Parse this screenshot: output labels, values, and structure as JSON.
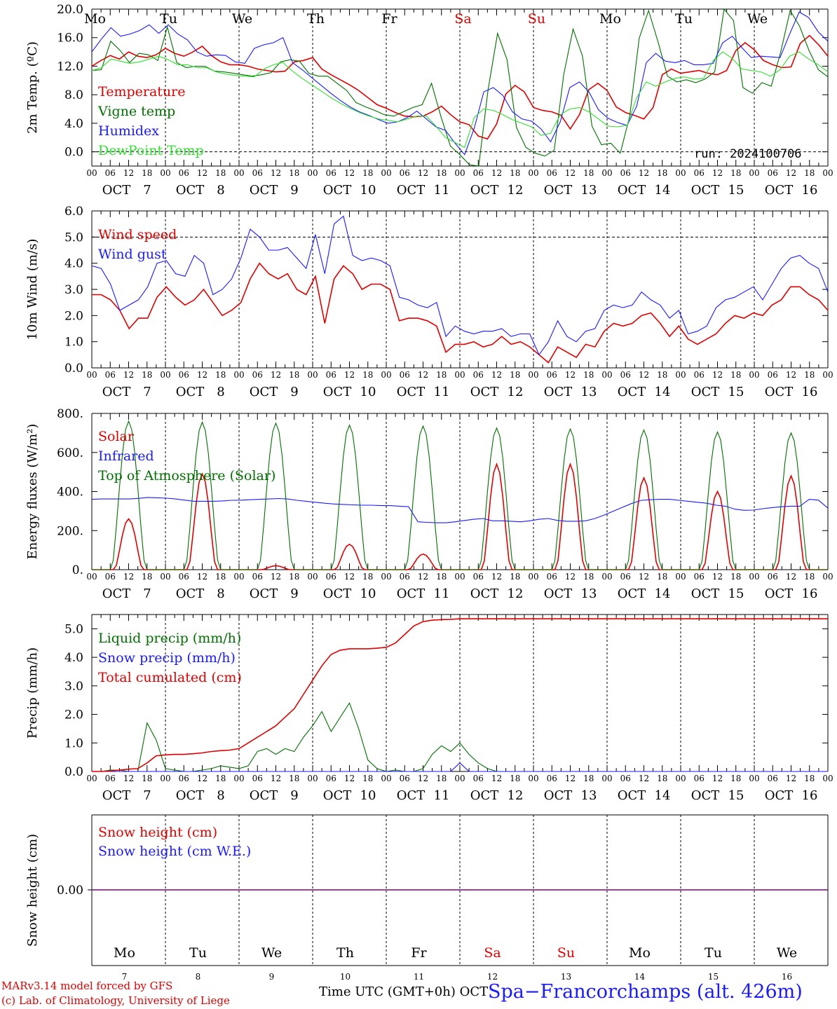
{
  "days": [
    {
      "abbr": "Mo",
      "date": "7",
      "weekend": false
    },
    {
      "abbr": "Tu",
      "date": "8",
      "weekend": false
    },
    {
      "abbr": "We",
      "date": "9",
      "weekend": false
    },
    {
      "abbr": "Th",
      "date": "10",
      "weekend": false
    },
    {
      "abbr": "Fr",
      "date": "11",
      "weekend": false
    },
    {
      "abbr": "Sa",
      "date": "12",
      "weekend": true
    },
    {
      "abbr": "Su",
      "date": "13",
      "weekend": true
    },
    {
      "abbr": "Mo",
      "date": "14",
      "weekend": false
    },
    {
      "abbr": "Tu",
      "date": "15",
      "weekend": false
    },
    {
      "abbr": "We",
      "date": "16",
      "weekend": false
    }
  ],
  "month": "OCT",
  "hour_ticks": [
    "00",
    "06",
    "12",
    "18"
  ],
  "last_hour_tick": "00",
  "run_label": "run: 2024100706",
  "footer": {
    "credit_line1": "MARv3.14 model forced by GFS",
    "credit_line2": "(c) Lab. of Climatology, University of Liege",
    "x_title": "Time UTC (GMT+0h) OCT",
    "station": "Spa−Francorchamps (alt. 426m)"
  },
  "colors": {
    "red": "#e00000",
    "green": "#007000",
    "blue": "#1a1aff",
    "lightgreen": "#30e030",
    "purple": "#800080"
  },
  "chart_data": [
    {
      "type": "line",
      "ylabel": "2m Temp. (ºC)",
      "ylim": [
        -2.0,
        20.0
      ],
      "yticks": [
        "0.0",
        "4.0",
        "8.0",
        "12.0",
        "16.0",
        "20.0"
      ],
      "dashed_zero": true,
      "series": [
        {
          "name": "Temperature",
          "color": "red",
          "values": [
            12,
            12.8,
            13.5,
            13,
            14,
            13.4,
            13.2,
            13.6,
            14.5,
            13.8,
            13.4,
            14,
            14.8,
            13.5,
            12.6,
            12.2,
            12.2,
            12,
            11.6,
            11.4,
            11.2,
            11.3,
            12.6,
            12.8,
            13.2,
            11.6,
            10.8,
            10.1,
            9.4,
            8.6,
            7.6,
            6.6,
            6.1,
            5.5,
            5,
            4.9,
            5,
            5.6,
            6.4,
            5.2,
            4.2,
            3.8,
            2.2,
            1.8,
            3.9,
            8.1,
            9.3,
            8.4,
            6.2,
            5.8,
            5.6,
            5.1,
            3.2,
            5.2,
            8.7,
            9.6,
            8.6,
            6.3,
            5.5,
            5.1,
            4.6,
            6.2,
            10.8,
            11.6,
            11,
            11.2,
            11.4,
            11,
            10.8,
            11.4,
            14.2,
            15.3,
            14.3,
            12.8,
            12.2,
            11.8,
            11.9,
            15.2,
            16.3,
            15,
            13.4
          ]
        },
        {
          "name": "Vigne temp",
          "color": "green",
          "values": [
            11.4,
            11.5,
            15.5,
            14.2,
            12.5,
            13.8,
            13.6,
            12.8,
            17.5,
            12.5,
            11.8,
            12,
            12,
            11.3,
            11.2,
            11,
            10.8,
            10.6,
            10.8,
            11.1,
            12.6,
            12.9,
            12.7,
            11,
            10.6,
            10.6,
            9.6,
            8.6,
            6.9,
            6.3,
            5.8,
            5.2,
            5,
            5.6,
            6.2,
            6.6,
            9.6,
            4.9,
            0.8,
            -0.4,
            -1.8,
            -3,
            8.8,
            16.6,
            12.9,
            3.4,
            0.6,
            -0.2,
            -0.6,
            0.2,
            10.8,
            17.2,
            13.4,
            3.6,
            1,
            1.2,
            -0.2,
            5,
            15.9,
            19.8,
            15.4,
            10.6,
            9.8,
            10.1,
            9.7,
            10.2,
            11.2,
            20.4,
            18.4,
            9,
            8.2,
            9.7,
            9.2,
            14,
            19.8,
            17.6,
            14.2,
            11.5,
            10.5
          ]
        },
        {
          "name": "Humidex",
          "color": "blue",
          "values": [
            14,
            15.8,
            17.4,
            16.2,
            16.5,
            17,
            17.8,
            16.6,
            17.8,
            16.5,
            15.7,
            14,
            13.4,
            13.6,
            13.5,
            12.6,
            12.4,
            14.5,
            15,
            15.3,
            16,
            12.5,
            11.5,
            10.4,
            9.3,
            8.2,
            7.2,
            6.3,
            5.6,
            5.1,
            4.5,
            4,
            4.2,
            4.8,
            5.7,
            4.6,
            3.5,
            3,
            1.2,
            -0.4,
            3.3,
            8.4,
            9,
            7.9,
            5.6,
            4.6,
            4.3,
            3.2,
            1.4,
            4.2,
            9,
            9.8,
            8.4,
            5.9,
            4.7,
            4.1,
            3.7,
            6.4,
            12.5,
            13.8,
            12.7,
            12.5,
            12.8,
            12.2,
            12.2,
            12.4,
            15.3,
            16.2,
            14.6,
            13.2,
            13.4,
            13.3,
            13.2,
            16.5,
            19.6,
            18.8,
            16.8,
            15.5
          ]
        },
        {
          "name": "DewPoint Temp",
          "color": "lightgreen",
          "values": [
            11.4,
            11.8,
            13,
            12.7,
            12.4,
            12.6,
            13,
            13.4,
            12.9,
            12.2,
            12.2,
            11.8,
            11.8,
            11.2,
            10.9,
            10.7,
            10.6,
            10.5,
            11.6,
            12.2,
            12.5,
            11.3,
            10.3,
            9.4,
            8.5,
            7.6,
            6.8,
            6.1,
            5.5,
            5,
            4.6,
            4.4,
            4.2,
            4.6,
            5,
            5,
            3.6,
            2,
            1.3,
            0.6,
            4.8,
            6,
            5.8,
            5.2,
            4.5,
            4,
            3.5,
            2.3,
            2.6,
            5.2,
            6,
            6.2,
            5.6,
            4.6,
            3.6,
            3.5,
            3.7,
            7.6,
            9.8,
            9.2,
            9.8,
            10.3,
            10.5,
            10.2,
            10.3,
            12.8,
            14,
            13.1,
            11.6,
            11.4,
            11.2,
            10.6,
            11.5,
            13.4,
            14,
            13,
            12.2,
            11.2
          ]
        }
      ],
      "x_range_hours": [
        0,
        240
      ]
    },
    {
      "type": "line",
      "ylabel": "10m Wind (m/s)",
      "ylim": [
        0.0,
        6.0
      ],
      "yticks": [
        "0.0",
        "1.0",
        "2.0",
        "3.0",
        "4.0",
        "5.0",
        "6.0"
      ],
      "dashed_line_at": 5.0,
      "series": [
        {
          "name": "Wind speed",
          "color": "red",
          "values": [
            2.8,
            2.8,
            2.6,
            2.2,
            1.5,
            1.9,
            1.9,
            2.7,
            3.1,
            2.7,
            2.4,
            2.6,
            3,
            2.5,
            2,
            2.2,
            2.5,
            3.4,
            4,
            3.6,
            3.4,
            3.6,
            3,
            2.8,
            3.5,
            1.7,
            3.4,
            3.9,
            3.6,
            3,
            3.2,
            3.2,
            3,
            1.8,
            1.9,
            1.9,
            1.8,
            1.6,
            0.6,
            0.9,
            0.9,
            1,
            0.8,
            0.9,
            1.2,
            0.9,
            1,
            0.8,
            0.5,
            0.2,
            0.8,
            0.6,
            0.4,
            0.9,
            0.8,
            1.4,
            1.7,
            1.6,
            1.7,
            2,
            2.1,
            1.7,
            1.2,
            1.6,
            1.1,
            0.9,
            1.1,
            1.3,
            1.7,
            2,
            1.9,
            2.1,
            2,
            2.4,
            2.6,
            3.1,
            3.1,
            2.8,
            2.6,
            2.2
          ]
        },
        {
          "name": "Wind gust",
          "color": "blue",
          "values": [
            3.9,
            3.8,
            3.2,
            2.2,
            2.4,
            2.6,
            3.1,
            4,
            4.1,
            3.6,
            3.5,
            4.3,
            4,
            2.8,
            3,
            3.4,
            4.2,
            5.3,
            5,
            4.5,
            4.5,
            4.6,
            4.2,
            3.8,
            5.1,
            3.6,
            5.5,
            5.8,
            4.3,
            4.1,
            4.2,
            4.1,
            3.9,
            2.7,
            2.6,
            2.4,
            2.3,
            2.5,
            1.2,
            1.6,
            1.4,
            1.3,
            1.4,
            1.4,
            1.5,
            1.2,
            1.3,
            1.3,
            0.5,
            1,
            1.8,
            1.2,
            1,
            1.4,
            1.5,
            2.2,
            2.4,
            2.3,
            2.4,
            2.9,
            2.6,
            2.4,
            1.9,
            2.2,
            1.3,
            1.4,
            1.6,
            2.3,
            2.6,
            2.7,
            2.9,
            3.1,
            2.6,
            3.2,
            3.8,
            4.2,
            4.3,
            4,
            3.8,
            2.9
          ]
        }
      ],
      "x_range_hours": [
        0,
        240
      ]
    },
    {
      "type": "line",
      "ylabel": "Energy fluxes (W/m²)",
      "ylim": [
        0,
        800
      ],
      "yticks": [
        "0.",
        "200.",
        "400.",
        "600.",
        "800."
      ],
      "series": [
        {
          "name": "Solar",
          "color": "red",
          "daily_peaks": [
            260,
            490,
            20,
            130,
            80,
            540,
            540,
            470,
            400,
            480
          ],
          "peak_hour": 12,
          "half_width_hours": 4.5
        },
        {
          "name": "Infrared",
          "color": "blue",
          "values": [
            360,
            362,
            362,
            362,
            362,
            365,
            370,
            368,
            366,
            362,
            356,
            350,
            350,
            350,
            352,
            355,
            356,
            358,
            360,
            362,
            364,
            362,
            355,
            350,
            345,
            340,
            336,
            334,
            332,
            330,
            330,
            328,
            328,
            325,
            322,
            245,
            242,
            240,
            240,
            245,
            252,
            258,
            262,
            250,
            250,
            248,
            245,
            250,
            258,
            262,
            252,
            248,
            248,
            250,
            262,
            280,
            300,
            320,
            340,
            355,
            358,
            360,
            360,
            355,
            350,
            345,
            340,
            330,
            325,
            310,
            304,
            305,
            312,
            318,
            322,
            325,
            325,
            360,
            356,
            315
          ]
        },
        {
          "name": "Top of Atmosphere (Solar)",
          "color": "green",
          "daily_peaks": [
            760,
            755,
            750,
            740,
            735,
            725,
            720,
            715,
            705,
            700
          ],
          "peak_hour": 12,
          "half_width_hours": 5.5
        }
      ],
      "x_range_hours": [
        0,
        240
      ]
    },
    {
      "type": "line",
      "ylabel": "Precip (mm/h)",
      "ylim": [
        0,
        5.5
      ],
      "yticks": [
        "0.0",
        "1.0",
        "2.0",
        "3.0",
        "4.0",
        "5.0"
      ],
      "series": [
        {
          "name": "Liquid precip (mm/h)",
          "color": "green",
          "values": [
            0,
            0,
            0.05,
            0.05,
            0,
            0,
            1.7,
            1.1,
            0.1,
            0.05,
            0,
            0,
            0.05,
            0.1,
            0.2,
            0.15,
            0.1,
            0.2,
            0.7,
            0.8,
            0.6,
            0.8,
            0.7,
            1.2,
            1.6,
            2.1,
            1.4,
            1.9,
            2.4,
            1.5,
            0.4,
            0.1,
            0,
            0.05,
            0,
            0,
            0.1,
            0.6,
            0.9,
            0.7,
            1,
            0.6,
            0.3,
            0.1,
            0,
            0,
            0,
            0,
            0,
            0,
            0,
            0,
            0,
            0,
            0,
            0,
            0,
            0,
            0,
            0,
            0,
            0,
            0,
            0,
            0,
            0,
            0,
            0,
            0,
            0,
            0,
            0,
            0,
            0,
            0,
            0,
            0,
            0,
            0,
            0,
            0
          ]
        },
        {
          "name": "Snow precip (mm/h)",
          "color": "blue",
          "values": [
            0,
            0,
            0,
            0,
            0,
            0,
            0,
            0,
            0,
            0,
            0,
            0,
            0,
            0,
            0,
            0,
            0,
            0,
            0,
            0,
            0,
            0,
            0,
            0,
            0,
            0,
            0,
            0,
            0,
            0,
            0,
            0,
            0,
            0,
            0,
            0,
            0,
            0,
            0,
            0,
            0.3,
            0,
            0,
            0,
            0,
            0,
            0,
            0,
            0,
            0,
            0,
            0,
            0,
            0,
            0,
            0,
            0,
            0,
            0,
            0,
            0,
            0,
            0,
            0,
            0,
            0,
            0,
            0,
            0,
            0,
            0,
            0,
            0,
            0,
            0,
            0,
            0,
            0,
            0,
            0,
            0
          ]
        },
        {
          "name": "Total cumulated (cm)",
          "color": "red",
          "values": [
            0,
            0,
            0.02,
            0.05,
            0.08,
            0.1,
            0.3,
            0.55,
            0.58,
            0.6,
            0.6,
            0.62,
            0.65,
            0.7,
            0.73,
            0.75,
            0.8,
            1.0,
            1.2,
            1.4,
            1.6,
            1.9,
            2.2,
            2.7,
            3.2,
            3.7,
            4.1,
            4.25,
            4.3,
            4.3,
            4.3,
            4.32,
            4.35,
            4.5,
            4.8,
            5.1,
            5.25,
            5.3,
            5.32,
            5.33,
            5.35,
            5.35,
            5.35,
            5.35,
            5.35,
            5.35,
            5.35,
            5.35,
            5.35,
            5.35,
            5.35,
            5.35,
            5.35,
            5.35,
            5.35,
            5.35,
            5.35,
            5.35,
            5.35,
            5.35,
            5.35,
            5.35,
            5.35,
            5.35,
            5.35,
            5.35,
            5.35,
            5.35,
            5.35,
            5.35,
            5.35,
            5.35,
            5.35,
            5.35,
            5.35,
            5.35,
            5.35,
            5.35,
            5.35,
            5.35,
            5.35
          ]
        }
      ],
      "x_range_hours": [
        0,
        240
      ]
    },
    {
      "type": "line",
      "ylabel": "Snow height (cm)",
      "yticks": [
        "0.00"
      ],
      "series": [
        {
          "name": "Snow height (cm)",
          "color": "red",
          "values": [
            0
          ]
        },
        {
          "name": "Snow height (cm W.E.)",
          "color": "blue",
          "values": [
            0
          ]
        }
      ],
      "x_range_hours": [
        0,
        240
      ]
    }
  ]
}
